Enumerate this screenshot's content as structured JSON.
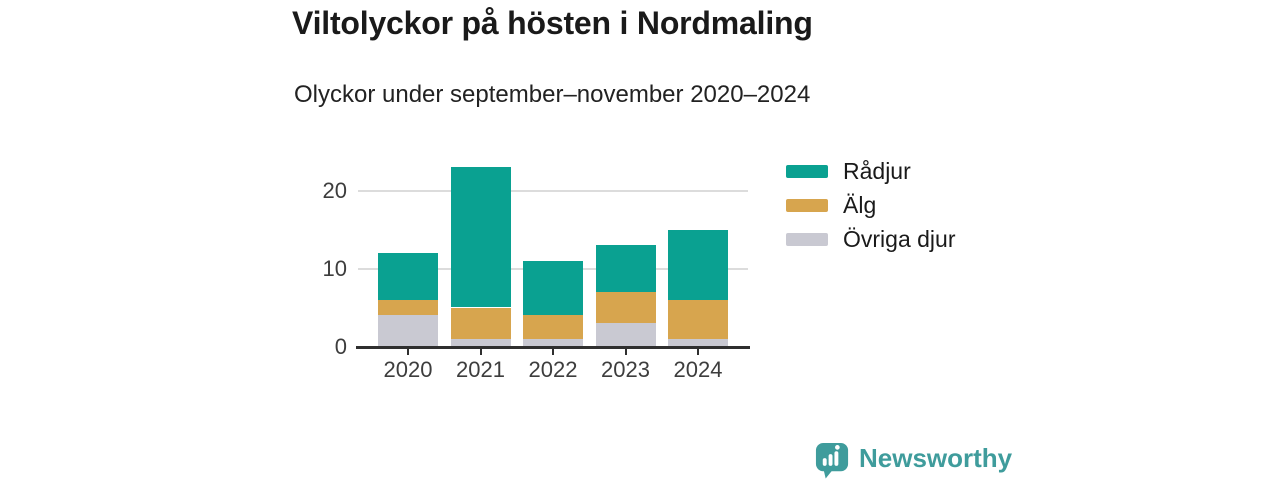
{
  "header": {
    "title": "Viltolyckor på hösten i Nordmaling",
    "subtitle": "Olyckor under september–november 2020–2024"
  },
  "chart_data": {
    "type": "bar",
    "stacked": true,
    "title": "Viltolyckor på hösten i Nordmaling",
    "subtitle": "Olyckor under september–november 2020–2024",
    "categories": [
      "2020",
      "2021",
      "2022",
      "2023",
      "2024"
    ],
    "series": [
      {
        "name": "Rådjur",
        "color": "#0aa191",
        "values": [
          6,
          18,
          7,
          6,
          9
        ]
      },
      {
        "name": "Älg",
        "color": "#d7a54e",
        "values": [
          2,
          4,
          3,
          4,
          5
        ]
      },
      {
        "name": "Övriga djur",
        "color": "#c9c9d2",
        "values": [
          4,
          1,
          1,
          3,
          1
        ]
      }
    ],
    "stack_order_bottom_to_top": [
      "Övriga djur",
      "Älg",
      "Rådjur"
    ],
    "totals": [
      12,
      23,
      11,
      13,
      15
    ],
    "yticks": [
      0,
      10,
      20
    ],
    "ylim": [
      0,
      24
    ],
    "xlabel": "",
    "ylabel": "",
    "grid": "horizontal",
    "legend_position": "right"
  },
  "branding": {
    "name": "Newsworthy",
    "color": "#3f9c9c",
    "icon": "newsworthy-speech-bubble-chart-icon"
  },
  "colors": {
    "background": "#ffffff",
    "title_text": "#1a1a1a",
    "axis_text": "#3d3d3d",
    "axis_line": "#2f2f2f",
    "gridline": "#dcdcdc"
  }
}
